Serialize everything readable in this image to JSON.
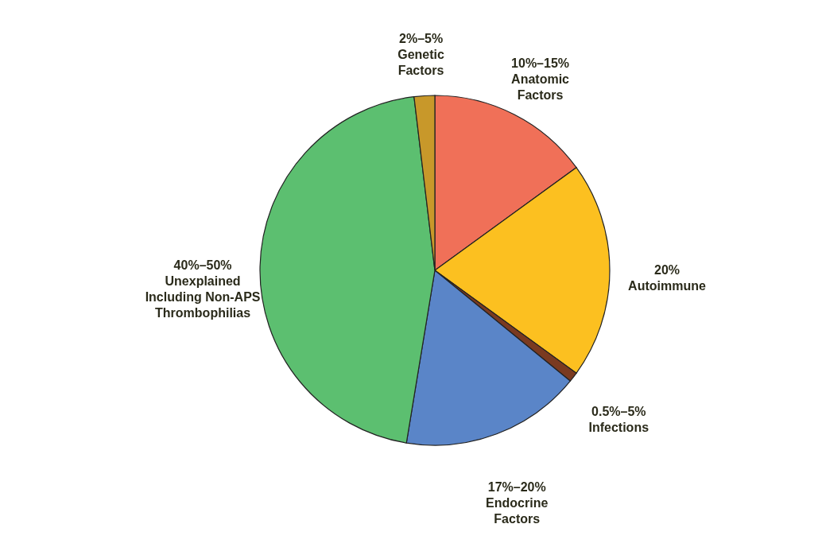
{
  "chart_data": {
    "type": "pie",
    "categories": [
      "10%–15%\nAnatomic\nFactors",
      "20%\nAutoimmune",
      "0.5%–5%\nInfections",
      "17%–20%\nEndocrine\nFactors",
      "40%–50%\nUnexplained\nIncluding Non-APS\nThrombophilias",
      "2%–5%\nGenetic\nFactors"
    ],
    "values": [
      15,
      20,
      0.9,
      16.7,
      45.5,
      1.9
    ],
    "colors": [
      "#f07058",
      "#fcc020",
      "#7a3a20",
      "#5a85c8",
      "#5cbf70",
      "#c8982a"
    ]
  }
}
